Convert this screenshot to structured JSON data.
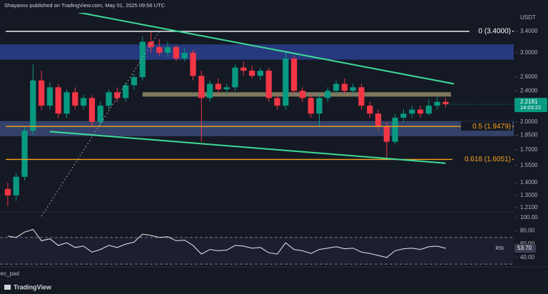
{
  "header": "Shayannv published on TradingView.com, May 01, 2025 09:56 UTC",
  "footer": "TradingView",
  "chart_data": {
    "type": "candlestick",
    "currency": "USDT",
    "categories": [
      "Dec_pad",
      null
    ],
    "log": true,
    "ylim": [
      1.19,
      3.79
    ],
    "yticks": [
      {
        "value": 1.21,
        "label": "1.2100"
      },
      {
        "value": 1.3,
        "label": "1.3000"
      },
      {
        "value": 1.4,
        "label": "1.4000"
      },
      {
        "value": 1.55,
        "label": "1.5500"
      },
      {
        "value": 1.7,
        "label": "1.7000"
      },
      {
        "value": 1.85,
        "label": "1.8500"
      },
      {
        "value": 2.0,
        "label": "2.0000"
      },
      {
        "value": 2.4,
        "label": "2.4000"
      },
      {
        "value": 2.6,
        "label": "2.6000"
      },
      {
        "value": 3.0,
        "label": "3.0000"
      },
      {
        "value": 3.4,
        "label": "3.4000"
      }
    ],
    "up_color": "#089981",
    "down_color": "#f23645",
    "open": [
      1.35,
      1.3,
      1.45,
      1.9,
      2.55,
      2.2,
      2.45,
      2.1,
      2.38,
      2.2,
      2.3,
      2.0,
      2.2,
      2.38,
      2.3,
      2.48,
      2.6,
      3.2,
      3.1,
      3.0,
      3.1,
      2.9,
      3.0,
      2.62,
      2.3,
      2.5,
      2.42,
      2.45,
      2.75,
      2.7,
      2.62,
      2.7,
      2.3,
      2.2,
      2.9,
      2.4,
      2.3,
      2.1,
      2.3,
      2.4,
      2.5,
      2.4,
      2.45,
      2.2,
      2.1,
      1.95,
      1.78,
      2.05,
      2.1,
      2.15,
      2.1,
      2.2,
      2.25,
      null
    ],
    "high": [
      1.4,
      1.48,
      1.95,
      2.8,
      2.7,
      2.52,
      2.5,
      2.42,
      2.45,
      2.35,
      2.34,
      2.25,
      2.42,
      2.45,
      2.52,
      2.65,
      3.3,
      3.4,
      3.25,
      3.2,
      3.15,
      3.08,
      3.05,
      2.7,
      2.55,
      2.58,
      2.5,
      2.8,
      2.85,
      2.78,
      2.75,
      2.75,
      2.35,
      3.0,
      2.95,
      2.45,
      2.35,
      2.35,
      2.45,
      2.55,
      2.58,
      2.5,
      2.5,
      2.25,
      2.15,
      2.0,
      2.1,
      2.15,
      2.2,
      2.2,
      2.28,
      2.32,
      2.3,
      null
    ],
    "low": [
      1.22,
      1.26,
      1.42,
      1.85,
      2.15,
      2.15,
      2.05,
      2.05,
      2.15,
      2.15,
      1.95,
      1.96,
      2.15,
      2.25,
      2.25,
      2.42,
      2.55,
      3.0,
      2.95,
      2.92,
      2.85,
      2.85,
      2.55,
      1.78,
      2.25,
      2.35,
      2.35,
      2.4,
      2.62,
      2.58,
      2.55,
      2.25,
      2.15,
      2.15,
      2.35,
      2.25,
      2.05,
      1.95,
      2.25,
      2.35,
      2.35,
      2.35,
      2.15,
      2.05,
      1.9,
      1.61,
      1.75,
      2.0,
      2.05,
      2.05,
      2.08,
      2.15,
      2.18,
      null
    ],
    "close": [
      1.3,
      1.45,
      1.9,
      2.55,
      2.2,
      2.45,
      2.1,
      2.38,
      2.2,
      2.3,
      2.0,
      2.2,
      2.38,
      2.3,
      2.48,
      2.6,
      3.2,
      3.1,
      3.0,
      3.1,
      2.9,
      3.0,
      2.62,
      2.3,
      2.5,
      2.42,
      2.45,
      2.75,
      2.7,
      2.62,
      2.7,
      2.3,
      2.2,
      2.9,
      2.4,
      2.3,
      2.1,
      2.3,
      2.4,
      2.5,
      2.4,
      2.45,
      2.2,
      2.1,
      1.95,
      1.78,
      2.05,
      2.1,
      2.15,
      2.1,
      2.2,
      2.25,
      2.2181,
      null
    ],
    "last_price": 2.2181,
    "countdown": "14:03:22",
    "levels": [
      {
        "label": "0 (3.4000)",
        "value": 3.4,
        "color": "#ffffff"
      },
      {
        "label": "0.5 (1.9479)",
        "value": 1.9479,
        "color": "#f7a21b"
      },
      {
        "label": "0.618 (1.6051)",
        "value": 1.6051,
        "color": "#f7a21b"
      }
    ],
    "zones": [
      {
        "from": 2.88,
        "to": 3.15,
        "start": 0,
        "color": "#2a3f8f"
      },
      {
        "from": 1.84,
        "to": 2.01,
        "start": 0,
        "color": "#3a4a78"
      },
      {
        "from": 2.32,
        "to": 2.38,
        "start": 16,
        "color": "#8a8466"
      }
    ],
    "trendlines": [
      {
        "x": [
          7,
          53
        ],
        "y": [
          3.85,
          2.5
        ],
        "color": "#3ddc97",
        "dash": false
      },
      {
        "x": [
          5,
          52
        ],
        "y": [
          1.89,
          1.57
        ],
        "color": "#3ddc97",
        "dash": false
      },
      {
        "x": [
          4,
          18
        ],
        "y": [
          1.15,
          3.4
        ],
        "color": "#9aa0aa",
        "dash": true
      }
    ],
    "rsi": {
      "name": "RSI",
      "color": "#e8eaf0",
      "values": [
        72,
        70,
        78,
        82,
        65,
        68,
        58,
        62,
        55,
        57,
        48,
        52,
        58,
        55,
        60,
        63,
        75,
        73,
        70,
        71,
        65,
        66,
        58,
        45,
        52,
        50,
        51,
        58,
        57,
        54,
        55,
        47,
        45,
        62,
        52,
        50,
        46,
        52,
        54,
        56,
        53,
        54,
        48,
        46,
        43,
        40,
        50,
        53,
        54,
        52,
        56,
        57,
        53.7,
        null
      ],
      "current": {
        "value": 53.7,
        "label": "53.70"
      },
      "ylim": [
        28,
        105
      ],
      "yticks": [
        {
          "value": 40,
          "label": "40.00"
        },
        {
          "value": 60,
          "label": "60.00"
        },
        {
          "value": 80,
          "label": "80.00"
        },
        {
          "value": 100,
          "label": "100.00"
        }
      ],
      "bands": [
        30,
        70
      ]
    }
  }
}
